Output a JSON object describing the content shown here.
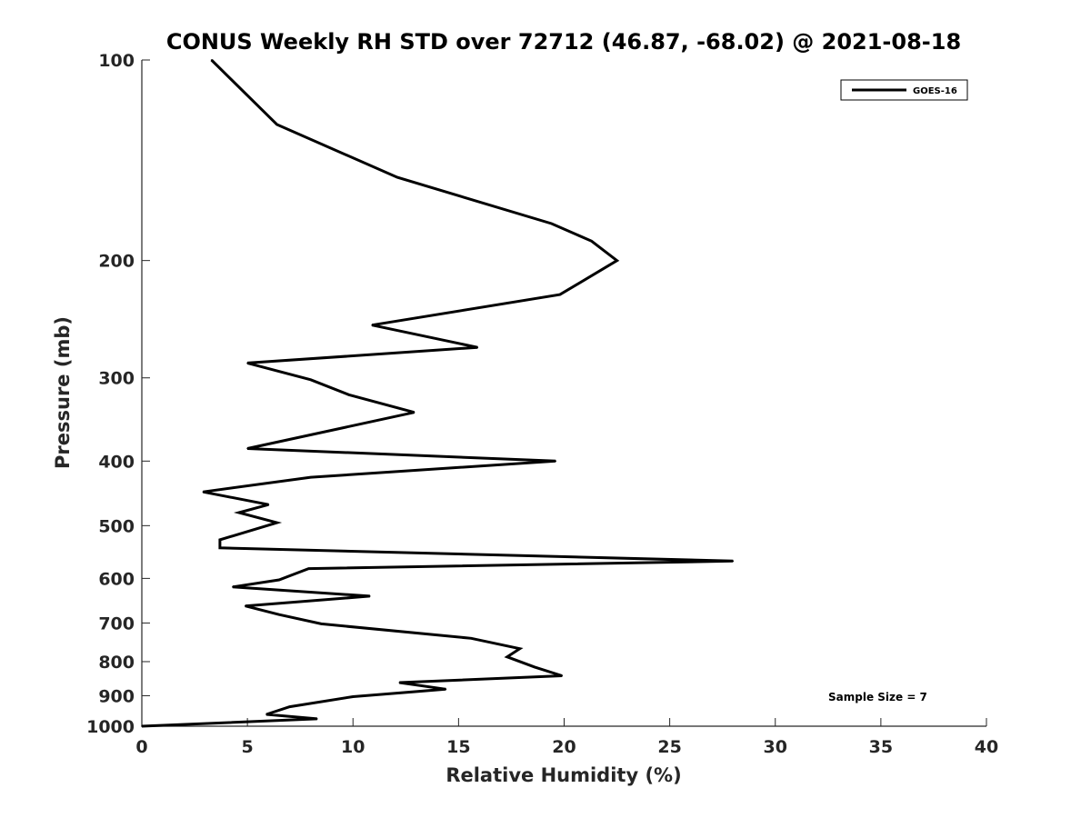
{
  "chart_data": {
    "type": "line",
    "title": "CONUS Weekly RH STD over 72712 (46.87, -68.02) @ 2021-08-18",
    "xlabel": "Relative Humidity (%)",
    "ylabel": "Pressure (mb)",
    "xlim": [
      0,
      40
    ],
    "ylim": [
      100,
      1000
    ],
    "y_scale": "log",
    "y_reversed": true,
    "x_ticks": [
      0,
      5,
      10,
      15,
      20,
      25,
      30,
      35,
      40
    ],
    "y_ticks": [
      100,
      200,
      300,
      400,
      500,
      600,
      700,
      800,
      900,
      1000
    ],
    "grid": false,
    "legend": {
      "position": "top-right",
      "entries": [
        "GOES-16"
      ]
    },
    "annotation": "Sample Size = 7",
    "series": [
      {
        "name": "GOES-16",
        "color": "#000000",
        "points": [
          [
            3.3,
            100
          ],
          [
            6.4,
            125
          ],
          [
            12.1,
            150
          ],
          [
            19.4,
            176
          ],
          [
            21.3,
            187
          ],
          [
            22.5,
            200
          ],
          [
            19.8,
            225
          ],
          [
            10.9,
            250
          ],
          [
            15.9,
            270
          ],
          [
            5.0,
            285
          ],
          [
            8.0,
            302
          ],
          [
            9.8,
            318
          ],
          [
            12.9,
            338
          ],
          [
            5.0,
            383
          ],
          [
            19.6,
            400
          ],
          [
            8.0,
            423
          ],
          [
            2.9,
            445
          ],
          [
            6.0,
            465
          ],
          [
            4.6,
            478
          ],
          [
            6.4,
            495
          ],
          [
            3.7,
            525
          ],
          [
            3.7,
            540
          ],
          [
            28.0,
            565
          ],
          [
            7.9,
            580
          ],
          [
            6.5,
            603
          ],
          [
            4.3,
            618
          ],
          [
            10.8,
            638
          ],
          [
            4.9,
            660
          ],
          [
            6.5,
            680
          ],
          [
            8.5,
            702
          ],
          [
            15.6,
            738
          ],
          [
            17.9,
            765
          ],
          [
            17.3,
            787
          ],
          [
            18.6,
            815
          ],
          [
            19.9,
            840
          ],
          [
            12.2,
            860
          ],
          [
            14.4,
            880
          ],
          [
            10.0,
            903
          ],
          [
            7.0,
            935
          ],
          [
            5.9,
            960
          ],
          [
            8.3,
            975
          ],
          [
            0.0,
            1000
          ]
        ]
      }
    ]
  }
}
